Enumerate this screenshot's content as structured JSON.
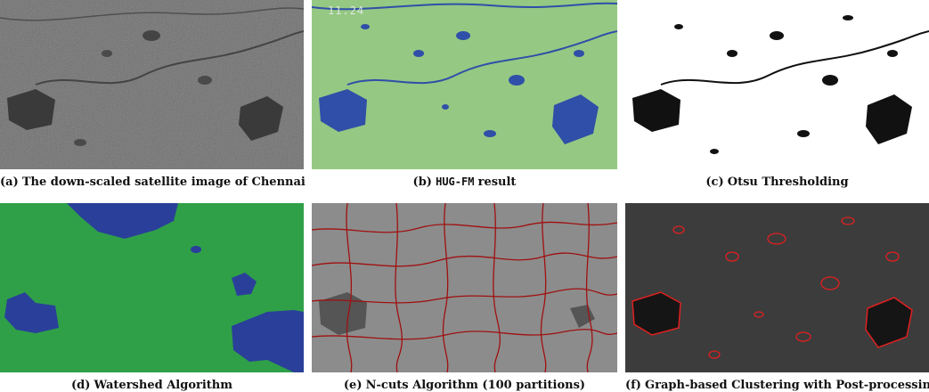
{
  "figures": [
    {
      "id": "a",
      "label": "(a)",
      "caption": "The down-scaled satellite image of Chennai"
    },
    {
      "id": "b",
      "label": "(b)",
      "caption_mono": "HUG-FM",
      "caption": "result",
      "overlay_text": "11.24"
    },
    {
      "id": "c",
      "label": "(c)",
      "caption": "Otsu Thresholding"
    },
    {
      "id": "d",
      "label": "(d)",
      "caption": "Watershed Algorithm"
    },
    {
      "id": "e",
      "label": "(e)",
      "caption": "N-cuts Algorithm (100 partitions)"
    },
    {
      "id": "f",
      "label": "(f)",
      "caption": "Graph-based Clustering with Post-processing"
    }
  ],
  "colors": {
    "satellite_base": "#6f6f6f",
    "water_dark": "#3a3a3a",
    "hug_land": "#95c883",
    "hug_water": "#2f4fa8",
    "otsu_land": "#ffffff",
    "otsu_water": "#111111",
    "watershed_land": "#2fa048",
    "watershed_water": "#2a3f9a",
    "ncut_base": "#8c8c8c",
    "ncut_line": "#a01010",
    "graph_base": "#3c3c3c",
    "graph_line": "#e02020"
  }
}
